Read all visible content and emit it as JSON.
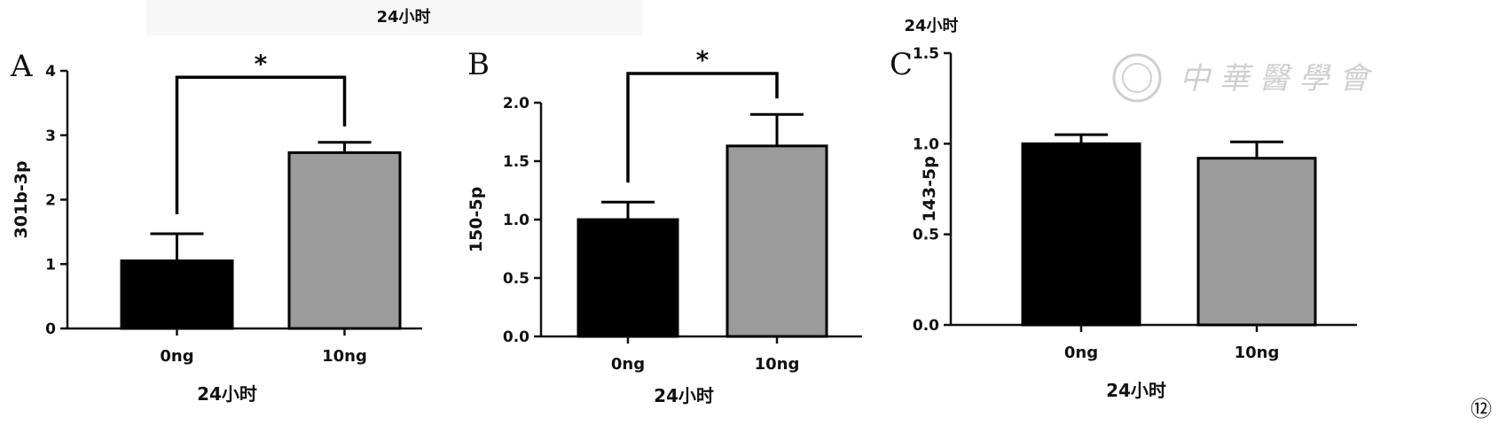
{
  "figure_number": "⑫",
  "watermark": {
    "text": "中 華 醫 學 會"
  },
  "chart_data": [
    {
      "panel": "A",
      "type": "bar",
      "title": "24小时",
      "xlabel": "24小时",
      "ylabel": "301b-3p",
      "categories": [
        "0ng",
        "10ng"
      ],
      "values": [
        1.05,
        2.73
      ],
      "errors": [
        0.42,
        0.16
      ],
      "colors": [
        "#000000",
        "#9b9b9b"
      ],
      "ylim": [
        0,
        4
      ],
      "yticks": [
        0,
        1,
        2,
        3,
        4
      ],
      "ytick_labels": [
        "0",
        "1",
        "2",
        "3",
        "4"
      ],
      "significance": {
        "text": "*",
        "between": [
          0,
          1
        ],
        "level": 3.9
      }
    },
    {
      "panel": "B",
      "type": "bar",
      "title": "",
      "xlabel": "24小时",
      "ylabel": "150-5p",
      "categories": [
        "0ng",
        "10ng"
      ],
      "values": [
        1.0,
        1.63
      ],
      "errors": [
        0.15,
        0.27
      ],
      "colors": [
        "#000000",
        "#9b9b9b"
      ],
      "ylim": [
        0,
        2.0
      ],
      "yticks": [
        0,
        0.5,
        1.0,
        1.5,
        2.0
      ],
      "ytick_labels": [
        "0.0",
        "0.5",
        "1.0",
        "1.5",
        "2.0"
      ],
      "significance": {
        "text": "*",
        "between": [
          0,
          1
        ],
        "level": 2.25
      }
    },
    {
      "panel": "C",
      "type": "bar",
      "title": "24小时",
      "xlabel": "24小时",
      "ylabel": "143-5p",
      "categories": [
        "0ng",
        "10ng"
      ],
      "values": [
        1.0,
        0.92
      ],
      "errors": [
        0.05,
        0.09
      ],
      "colors": [
        "#000000",
        "#9b9b9b"
      ],
      "ylim": [
        0,
        1.5
      ],
      "yticks": [
        0,
        0.5,
        1.0,
        1.5
      ],
      "ytick_labels": [
        "0.0",
        "0.5",
        "1.0",
        "1.5"
      ],
      "significance": null
    }
  ]
}
